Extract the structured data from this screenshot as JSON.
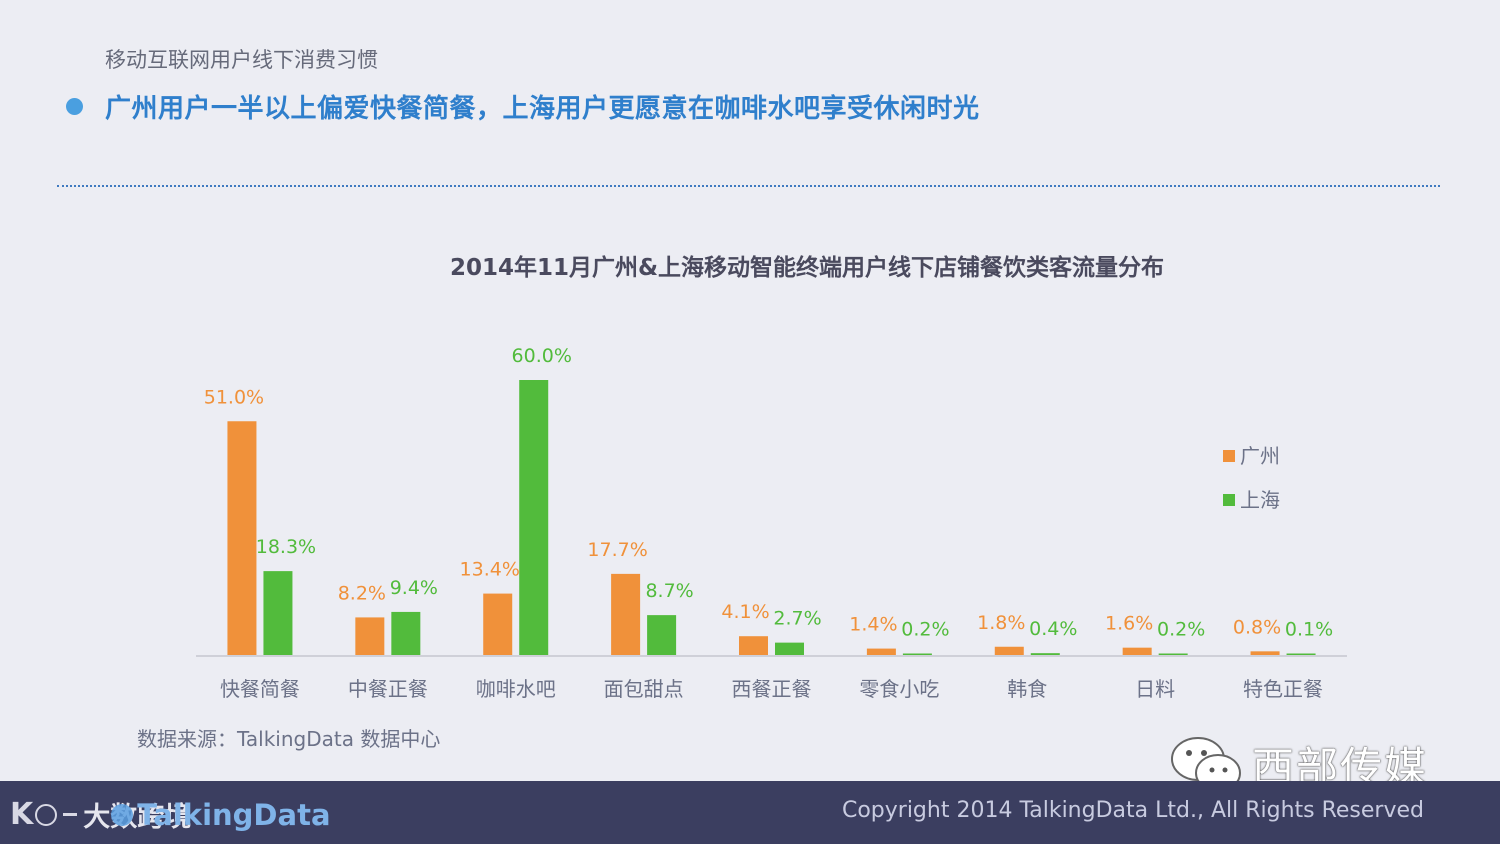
{
  "header": {
    "subtitle": "移动互联网用户线下消费习惯",
    "headline": "广州用户一半以上偏爱快餐简餐，上海用户更愿意在咖啡水吧享受休闲时光"
  },
  "colors": {
    "guangzhou": "#f0913a",
    "shanghai": "#52bb3c",
    "headline": "#2f7fcc",
    "footer": "#3b3e60"
  },
  "chart_data": {
    "type": "bar",
    "title": "2014年11月广州&上海移动智能终端用户线下店铺餐饮类客流量分布",
    "categories": [
      "快餐简餐",
      "中餐正餐",
      "咖啡水吧",
      "面包甜点",
      "西餐正餐",
      "零食小吃",
      "韩食",
      "日料",
      "特色正餐"
    ],
    "series": [
      {
        "name": "广州",
        "values": [
          51.0,
          8.2,
          13.4,
          17.7,
          4.1,
          1.4,
          1.8,
          1.6,
          0.8
        ],
        "labels": [
          "51.0%",
          "8.2%",
          "13.4%",
          "17.7%",
          "4.1%",
          "1.4%",
          "1.8%",
          "1.6%",
          "0.8%"
        ]
      },
      {
        "name": "上海",
        "values": [
          18.3,
          9.4,
          60.0,
          8.7,
          2.7,
          0.2,
          0.4,
          0.2,
          0.1
        ],
        "labels": [
          "18.3%",
          "9.4%",
          "60.0%",
          "8.7%",
          "2.7%",
          "0.2%",
          "0.4%",
          "0.2%",
          "0.1%"
        ]
      }
    ],
    "ylim": [
      0,
      60
    ],
    "legend": "right",
    "grid": false
  },
  "source": "数据来源：TalkingData 数据中心",
  "footer": {
    "copyright": "Copyright 2014 TalkingData Ltd., All Rights Reserved",
    "logo_cn": "大数跨境",
    "logo_brand": "TalkingData",
    "logo_mark": "K"
  },
  "watermark": {
    "text": "西部传媒",
    "icon": "wechat-icon"
  }
}
